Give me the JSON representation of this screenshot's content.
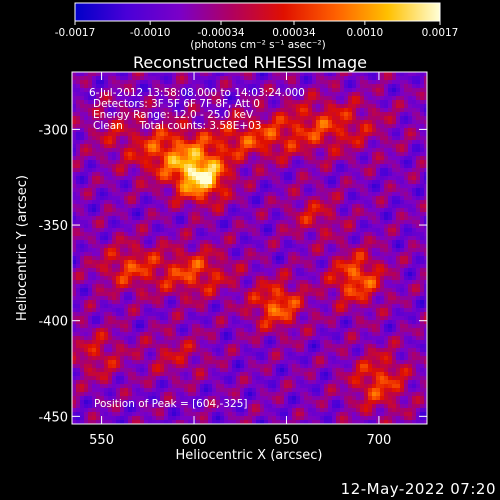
{
  "colorbar": {
    "tick_labels": [
      "-0.0017",
      "-0.0010",
      "-0.00034",
      "0.00034",
      "0.0010",
      "0.0017"
    ],
    "tick_values": [
      -0.0017,
      -0.001,
      -0.00034,
      0.00034,
      0.001,
      0.0017
    ],
    "range": [
      -0.0017,
      0.0017
    ],
    "unit_label": "(photons cm⁻² s⁻¹ asec⁻²)",
    "colors": [
      "#0000c8",
      "#4a00d8",
      "#7a00c8",
      "#b00060",
      "#e01000",
      "#ff6000",
      "#ffc000",
      "#ffffd8"
    ]
  },
  "image": {
    "title": "Reconstructed RHESSI Image",
    "info_lines": [
      "6-Jul-2012 13:58:08.000 to 14:03:24.000",
      "Detectors: 3F 5F 6F 7F 8F, Att 0",
      "Energy Range: 12.0 - 25.0 keV",
      "Clean     Total counts: 3.58E+03"
    ],
    "peak_label": "Position of Peak = [604,-325]"
  },
  "chart_data": {
    "type": "heatmap",
    "title": "Reconstructed RHESSI Image",
    "xlabel": "Heliocentric X (arcsec)",
    "ylabel": "Heliocentric Y (arcsec)",
    "xlim": [
      534,
      726
    ],
    "ylim": [
      -454,
      -270
    ],
    "x_ticks": [
      550,
      600,
      650,
      700
    ],
    "y_ticks": [
      -300,
      -350,
      -400,
      -450
    ],
    "x_tick_labels": [
      "550",
      "600",
      "650",
      "700"
    ],
    "y_tick_labels": [
      "-300",
      "-350",
      "-400",
      "-450"
    ],
    "value_range": [
      -0.0017,
      0.0017
    ],
    "peak": {
      "x": 604,
      "y": -325,
      "value": 0.0017
    },
    "sources": [
      {
        "x": 604,
        "y": -325,
        "value": 0.0017,
        "sx": 10,
        "sy": 9
      },
      {
        "x": 585,
        "y": -312,
        "value": 0.001,
        "sx": 14,
        "sy": 10
      },
      {
        "x": 630,
        "y": -305,
        "value": 0.0008,
        "sx": 18,
        "sy": 8
      },
      {
        "x": 672,
        "y": -298,
        "value": 0.0008,
        "sx": 20,
        "sy": 10
      },
      {
        "x": 565,
        "y": -372,
        "value": 0.0008,
        "sx": 12,
        "sy": 9
      },
      {
        "x": 600,
        "y": -375,
        "value": 0.0009,
        "sx": 14,
        "sy": 9
      },
      {
        "x": 645,
        "y": -392,
        "value": 0.0011,
        "sx": 10,
        "sy": 9
      },
      {
        "x": 688,
        "y": -378,
        "value": 0.0011,
        "sx": 10,
        "sy": 10
      },
      {
        "x": 700,
        "y": -432,
        "value": 0.0009,
        "sx": 11,
        "sy": 11
      },
      {
        "x": 548,
        "y": -418,
        "value": 0.0006,
        "sx": 10,
        "sy": 10
      },
      {
        "x": 590,
        "y": -418,
        "value": 0.0005,
        "sx": 12,
        "sy": 8
      },
      {
        "x": 665,
        "y": -345,
        "value": 0.0006,
        "sx": 10,
        "sy": 8
      },
      {
        "x": 555,
        "y": -300,
        "value": 0.0004,
        "sx": 10,
        "sy": 10
      }
    ]
  },
  "footer": {
    "timestamp": "12-May-2022 07:20"
  }
}
